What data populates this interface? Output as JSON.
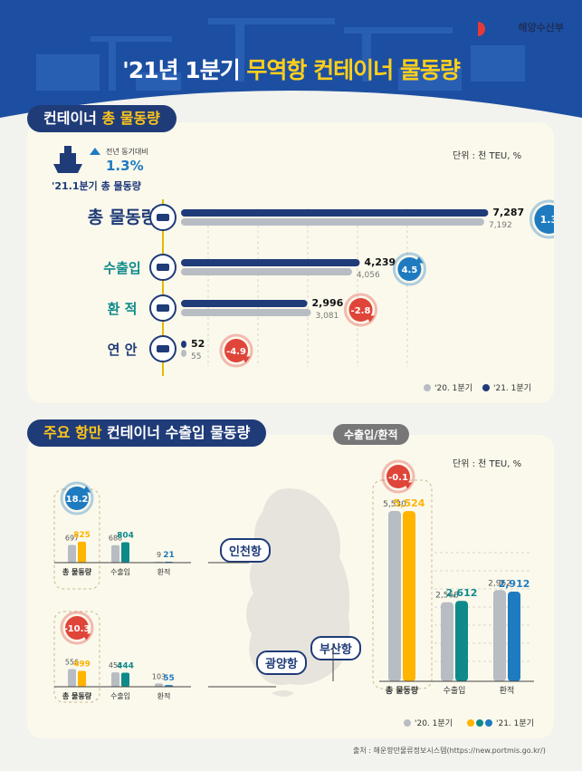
{
  "header": {
    "title_prefix": "'21년 1분기 ",
    "title_highlight": "무역항 컨테이너 물동량",
    "ministry": "해양수산부"
  },
  "section1": {
    "title_a": "컨테이너 ",
    "title_b": "총 물동량",
    "unit": "단위 : 천 TEU, %",
    "summary": {
      "caption": "전년 동기대비",
      "value": "1.3%",
      "label": "'21.1분기 총 물동량"
    }
  },
  "section2": {
    "title_a": "주요 ",
    "title_b": "항만 ",
    "title_c": "컨테이너 수출입 물동량",
    "tag": "수출입/환적",
    "unit": "단위 : 천 TEU, %"
  },
  "source": "출처 : 해운항만물류정보시스템(https://new.portmis.go.kr/)",
  "colors": {
    "navy": "#1f3b78",
    "gray": "#b8bcc3",
    "yellow": "#ffb400",
    "teal": "#0e8a8a",
    "blue": "#1f7bc0",
    "red": "#e0453a"
  },
  "chart_data": [
    {
      "type": "bar",
      "title": "컨테이너 총 물동량",
      "categories": [
        "총 물동량",
        "수출입",
        "환 적",
        "연 안"
      ],
      "series": [
        {
          "name": "'20. 1분기",
          "values": [
            7192,
            4056,
            3081,
            55
          ]
        },
        {
          "name": "'21. 1분기",
          "values": [
            7287,
            4239,
            2996,
            52
          ]
        }
      ],
      "changes": [
        "1.3",
        "4.5",
        "-2.8",
        "-4.9"
      ],
      "unit": "단위 : 천 TEU, %",
      "legend": [
        "'20. 1분기",
        "'21. 1분기"
      ]
    },
    {
      "type": "bar",
      "port": "인천항",
      "categories": [
        "총 물동량",
        "수출입",
        "환적"
      ],
      "series": [
        {
          "name": "'20. 1분기",
          "values": [
            697,
            688,
            9
          ]
        },
        {
          "name": "'21. 1분기",
          "values": [
            825,
            804,
            21
          ]
        }
      ],
      "change": "18.2"
    },
    {
      "type": "bar",
      "port": "광양항",
      "categories": [
        "총 물동량",
        "수출입",
        "환적"
      ],
      "series": [
        {
          "name": "'20. 1분기",
          "values": [
            556,
            453,
            103
          ]
        },
        {
          "name": "'21. 1분기",
          "values": [
            499,
            444,
            55
          ]
        }
      ],
      "change": "-10.3"
    },
    {
      "type": "bar",
      "port": "부산항",
      "categories": [
        "총 물동량",
        "수출입",
        "환적"
      ],
      "series": [
        {
          "name": "'20. 1분기",
          "values": [
            5530,
            2568,
            2962
          ]
        },
        {
          "name": "'21. 1분기",
          "values": [
            5524,
            2612,
            2912
          ]
        }
      ],
      "change": "-0.1",
      "legend": [
        "'20. 1분기",
        "'21. 1분기"
      ]
    }
  ]
}
